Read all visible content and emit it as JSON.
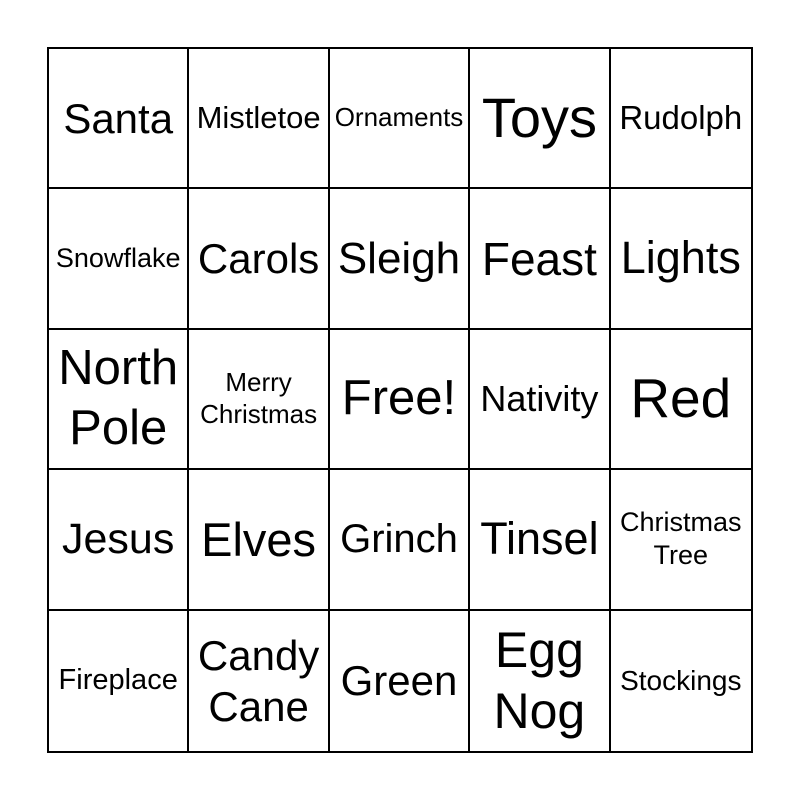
{
  "colors": {
    "background": "#ffffff",
    "grid_line": "#000000",
    "text": "#000000"
  },
  "card": {
    "type": "bingo-card",
    "theme": "Christmas",
    "rows": 5,
    "cols": 5,
    "free_space_label": "Free!",
    "cells": [
      {
        "label": "Santa"
      },
      {
        "label": "Mistletoe"
      },
      {
        "label": "Ornaments"
      },
      {
        "label": "Toys"
      },
      {
        "label": "Rudolph"
      },
      {
        "label": "Snowflake"
      },
      {
        "label": "Carols"
      },
      {
        "label": "Sleigh"
      },
      {
        "label": "Feast"
      },
      {
        "label": "Lights"
      },
      {
        "label": "North Pole"
      },
      {
        "label": "Merry Christmas"
      },
      {
        "label": "Free!"
      },
      {
        "label": "Nativity"
      },
      {
        "label": "Red"
      },
      {
        "label": "Jesus"
      },
      {
        "label": "Elves"
      },
      {
        "label": "Grinch"
      },
      {
        "label": "Tinsel"
      },
      {
        "label": "Christmas Tree"
      },
      {
        "label": "Fireplace"
      },
      {
        "label": "Candy Cane"
      },
      {
        "label": "Green"
      },
      {
        "label": "Egg Nog"
      },
      {
        "label": "Stockings"
      }
    ]
  }
}
